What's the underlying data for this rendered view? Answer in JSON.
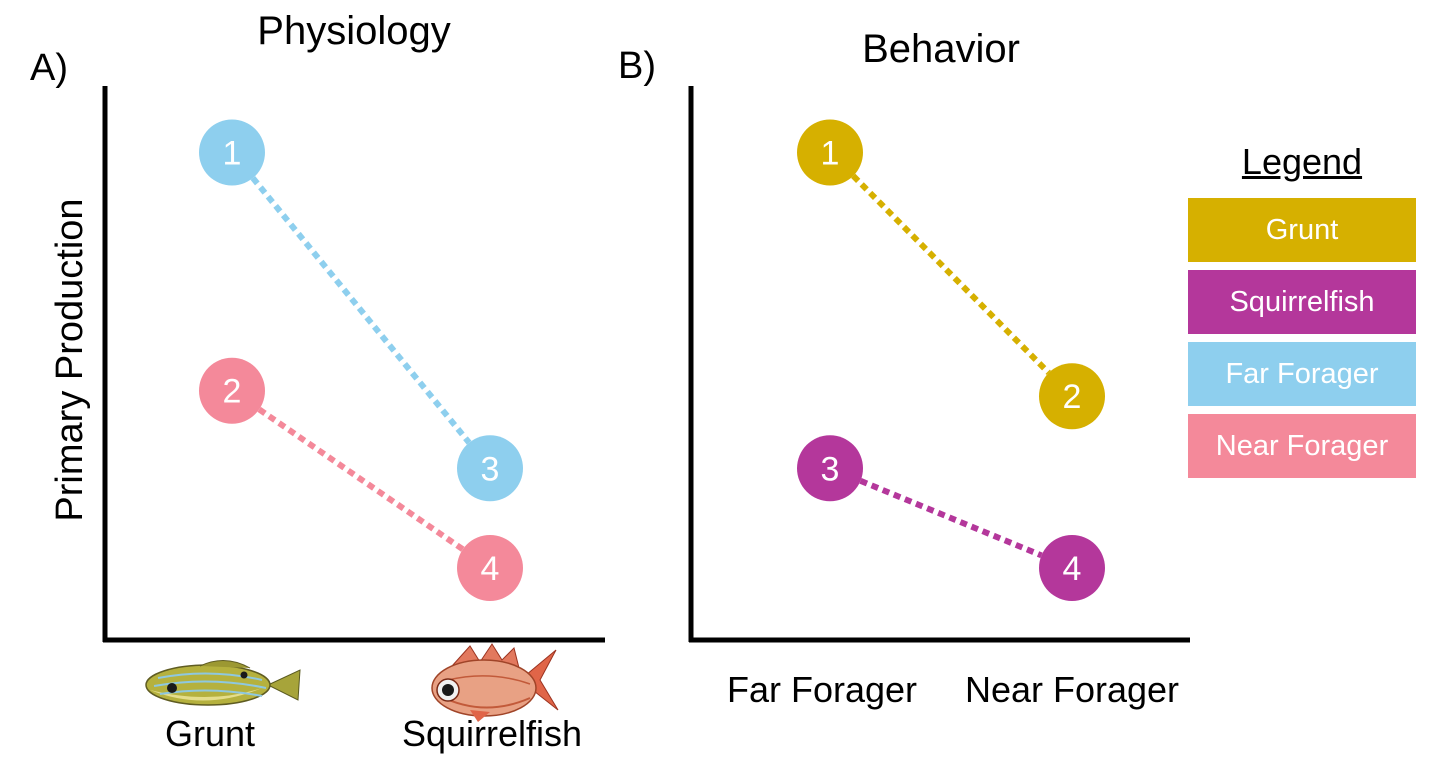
{
  "panels": [
    {
      "letter": "A)",
      "title": "Physiology",
      "ylabel": "Primary Production",
      "x_categories": [
        "Grunt",
        "Squirrelfish"
      ],
      "x_icons": [
        "grunt-fish-icon",
        "squirrelfish-icon"
      ],
      "points": [
        {
          "label": "1",
          "category": "Grunt",
          "level": 0.88,
          "color": "#8ecfee"
        },
        {
          "label": "2",
          "category": "Grunt",
          "level": 0.45,
          "color": "#f4899a"
        },
        {
          "label": "3",
          "category": "Squirrelfish",
          "level": 0.31,
          "color": "#8ecfee"
        },
        {
          "label": "4",
          "category": "Squirrelfish",
          "level": 0.13,
          "color": "#f4899a"
        }
      ],
      "connections": [
        {
          "from": "1",
          "to": "3",
          "color": "#8ecfee"
        },
        {
          "from": "2",
          "to": "4",
          "color": "#f4899a"
        }
      ]
    },
    {
      "letter": "B)",
      "title": "Behavior",
      "x_categories": [
        "Far Forager",
        "Near Forager"
      ],
      "points": [
        {
          "label": "1",
          "category": "Far Forager",
          "level": 0.88,
          "color": "#d6b000"
        },
        {
          "label": "2",
          "category": "Near Forager",
          "level": 0.44,
          "color": "#d6b000"
        },
        {
          "label": "3",
          "category": "Far Forager",
          "level": 0.31,
          "color": "#b4379b"
        },
        {
          "label": "4",
          "category": "Near Forager",
          "level": 0.13,
          "color": "#b4379b"
        }
      ],
      "connections": [
        {
          "from": "1",
          "to": "2",
          "color": "#d6b000"
        },
        {
          "from": "3",
          "to": "4",
          "color": "#b4379b"
        }
      ]
    }
  ],
  "legend": {
    "title": "Legend",
    "items": [
      {
        "label": "Grunt",
        "color": "#d6b000"
      },
      {
        "label": "Squirrelfish",
        "color": "#b4379b"
      },
      {
        "label": "Far Forager",
        "color": "#8ecfee"
      },
      {
        "label": "Near Forager",
        "color": "#f4899a"
      }
    ]
  }
}
